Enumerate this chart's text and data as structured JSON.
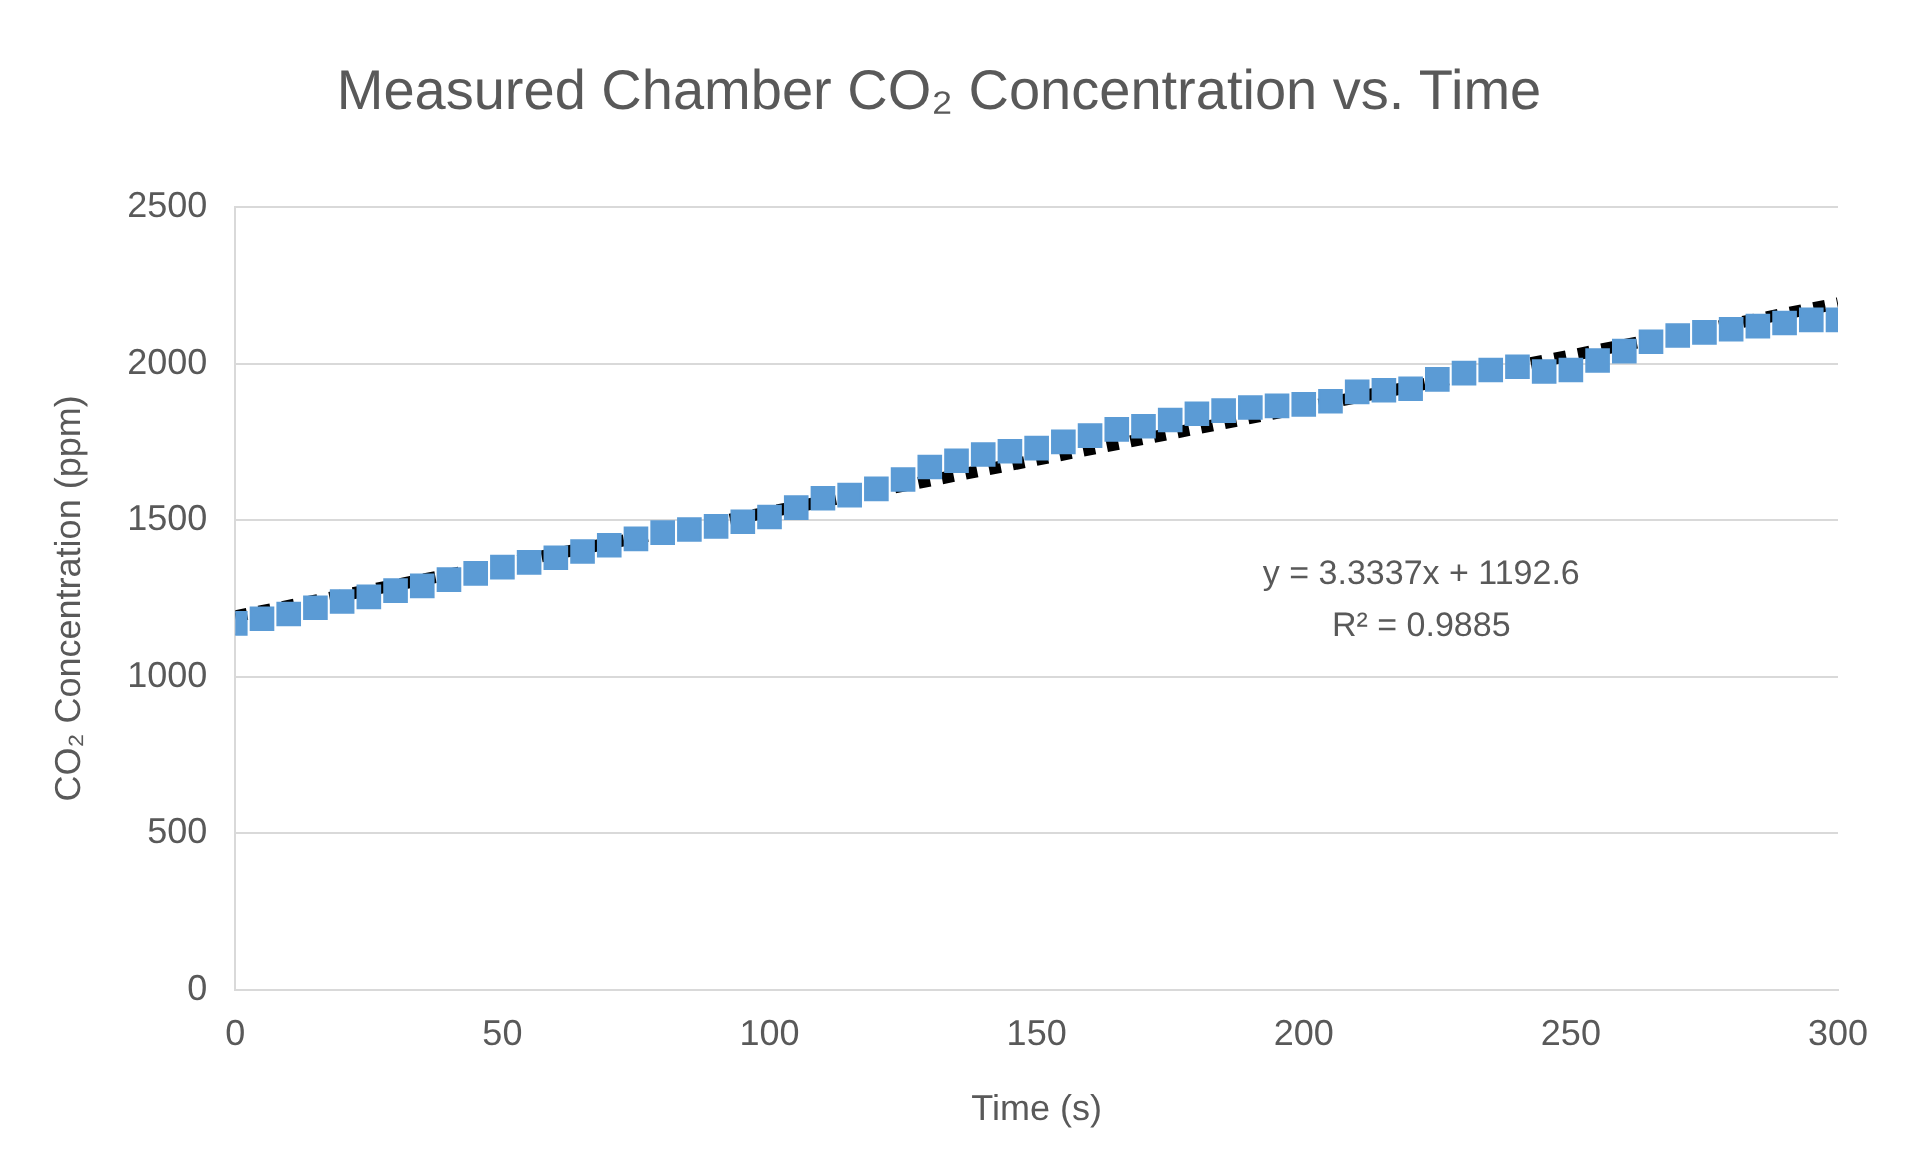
{
  "chart_data": {
    "type": "scatter",
    "title": "Measured Chamber CO₂ Concentration vs. Time",
    "xlabel": "Time (s)",
    "ylabel": "CO₂ Concentration (ppm)",
    "xlim": [
      0,
      300
    ],
    "xticks": [
      0,
      50,
      100,
      150,
      200,
      250,
      300
    ],
    "ylim": [
      0,
      2500
    ],
    "yticks": [
      0,
      500,
      1000,
      1500,
      2000,
      2500
    ],
    "grid": "y",
    "legend": false,
    "annotations": [
      "y = 3.3337x + 1192.6",
      "R² = 0.9885"
    ],
    "series": [
      {
        "marker": "square",
        "color": "#5b9bd5",
        "x": [
          0,
          5,
          10,
          15,
          20,
          25,
          30,
          35,
          40,
          45,
          50,
          55,
          60,
          65,
          70,
          75,
          80,
          85,
          90,
          95,
          100,
          105,
          110,
          115,
          120,
          125,
          130,
          135,
          140,
          145,
          150,
          155,
          160,
          165,
          170,
          175,
          180,
          185,
          190,
          195,
          200,
          205,
          210,
          215,
          220,
          225,
          230,
          235,
          240,
          245,
          250,
          255,
          260,
          265,
          270,
          275,
          280,
          285,
          290,
          295,
          300
        ],
        "values": [
          1170,
          1185,
          1200,
          1220,
          1240,
          1255,
          1275,
          1290,
          1310,
          1330,
          1350,
          1365,
          1380,
          1400,
          1420,
          1440,
          1460,
          1470,
          1480,
          1495,
          1510,
          1540,
          1570,
          1580,
          1600,
          1630,
          1670,
          1690,
          1710,
          1720,
          1730,
          1750,
          1770,
          1790,
          1800,
          1820,
          1840,
          1850,
          1860,
          1865,
          1870,
          1880,
          1910,
          1915,
          1920,
          1950,
          1970,
          1980,
          1990,
          1975,
          1980,
          2010,
          2040,
          2070,
          2090,
          2100,
          2110,
          2120,
          2130,
          2140,
          2140
        ]
      },
      {
        "type": "line",
        "color": "#000000",
        "line_style": "dotted",
        "x": [
          0,
          300
        ],
        "values": [
          1193,
          2193
        ]
      }
    ]
  }
}
